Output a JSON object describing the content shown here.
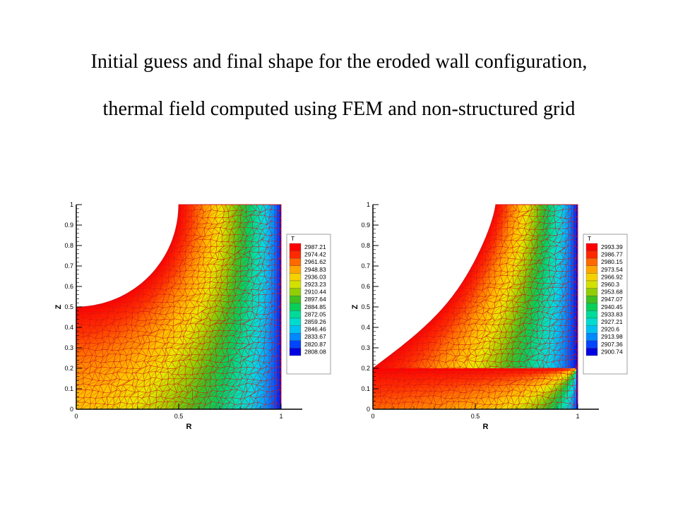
{
  "title_lines": [
    "Initial guess and final shape for the eroded wall configuration,",
    "thermal field computed using FEM and non-structured grid"
  ],
  "colors": {
    "scale": [
      "#0000e0",
      "#0050ff",
      "#00a0ff",
      "#00d8e8",
      "#00e0b0",
      "#00d060",
      "#40c020",
      "#a0d000",
      "#e8e800",
      "#ffc000",
      "#ff8000",
      "#ff3000",
      "#ff0000"
    ],
    "mesh": "#d01818"
  },
  "chart_data": [
    {
      "type": "heatmap",
      "name": "initial-guess",
      "xlabel": "R",
      "ylabel": "Z",
      "xlim": [
        0,
        1
      ],
      "ylim": [
        0,
        1
      ],
      "x_ticks": [
        "0",
        "0.5",
        "1"
      ],
      "y_ticks": [
        "0",
        "0.1",
        "0.2",
        "0.3",
        "0.4",
        "0.5",
        "0.6",
        "0.7",
        "0.8",
        "0.9",
        "1"
      ],
      "wall_boundary": "quarter circle centered at (0.5, 1) with radius 0.5",
      "legend_title": "T",
      "legend_placement": "right",
      "legend_values": [
        "2987.21",
        "2974.42",
        "2961.62",
        "2948.83",
        "2936.03",
        "2923.23",
        "2910.44",
        "2897.64",
        "2884.85",
        "2872.05",
        "2859.26",
        "2846.46",
        "2833.67",
        "2820.87",
        "2808.08"
      ],
      "t_max": 2987.21,
      "t_min": 2808.08
    },
    {
      "type": "heatmap",
      "name": "final-shape",
      "xlabel": "R",
      "ylabel": "Z",
      "xlim": [
        0,
        1
      ],
      "ylim": [
        0,
        1
      ],
      "x_ticks": [
        "0",
        "0.5",
        "1"
      ],
      "y_ticks": [
        "0",
        "0.1",
        "0.2",
        "0.3",
        "0.4",
        "0.5",
        "0.6",
        "0.7",
        "0.8",
        "0.9",
        "1"
      ],
      "wall_boundary": "eroded curve from (0, 0.2) to (0.6, 1)",
      "legend_title": "T",
      "legend_placement": "right",
      "legend_values": [
        "2993.39",
        "2986.77",
        "2980.15",
        "2973.54",
        "2966.92",
        "2960.3",
        "2953.68",
        "2947.07",
        "2940.45",
        "2933.83",
        "2927.21",
        "2920.6",
        "2913.98",
        "2907.36",
        "2900.74"
      ],
      "t_max": 2993.39,
      "t_min": 2900.74
    }
  ]
}
